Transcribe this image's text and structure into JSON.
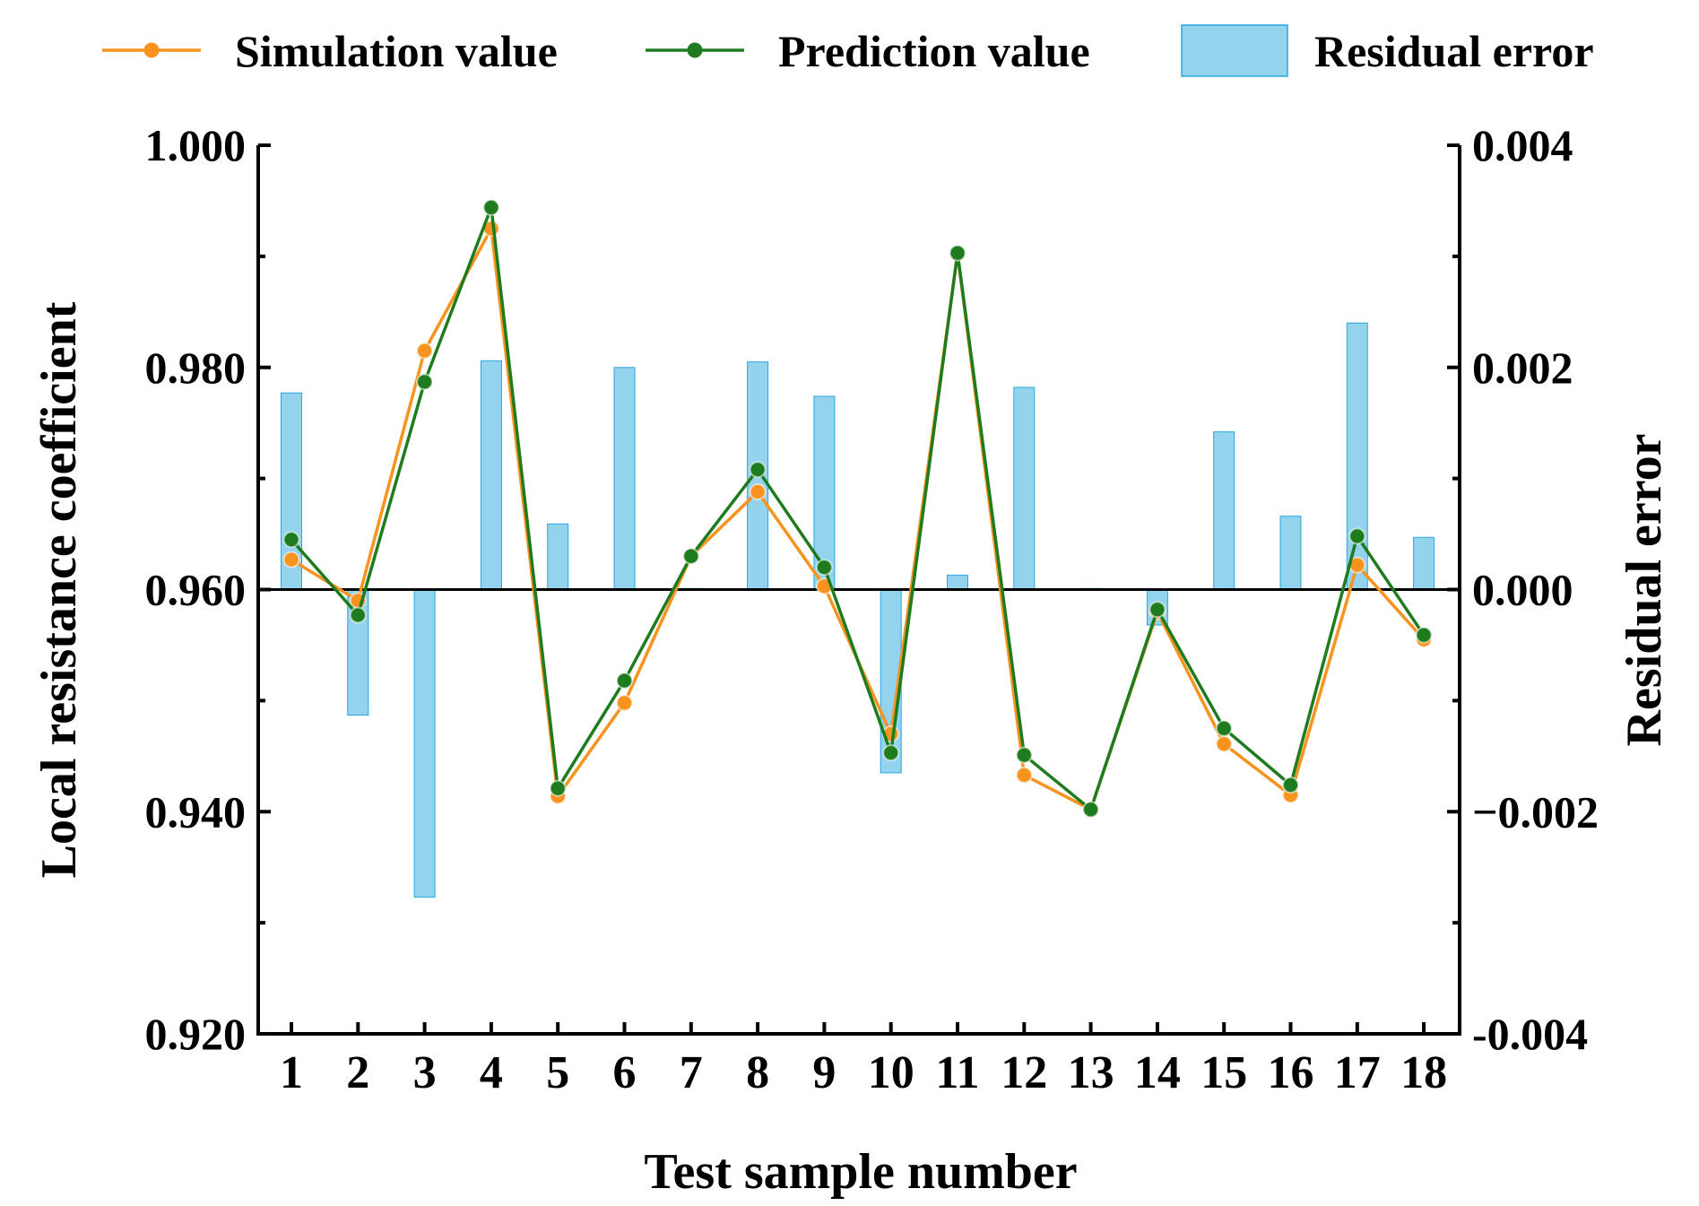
{
  "chart_data": {
    "type": "bar+line",
    "title": "",
    "xlabel": "Test sample number",
    "ylabel_left": "Local resistance coefficient",
    "ylabel_right": "Residual error",
    "categories": [
      "1",
      "2",
      "3",
      "4",
      "5",
      "6",
      "7",
      "8",
      "9",
      "10",
      "11",
      "12",
      "13",
      "14",
      "15",
      "16",
      "17",
      "18"
    ],
    "ylim_left": [
      0.92,
      1.0
    ],
    "ylim_right": [
      -0.004,
      0.004
    ],
    "left_ticks": [
      "0.920",
      "0.940",
      "0.960",
      "0.980",
      "1.000"
    ],
    "right_ticks": [
      "-0.004",
      "−0.002",
      "0.000",
      "0.002",
      "0.004"
    ],
    "legend_position": "top",
    "series": [
      {
        "name": "Simulation value",
        "kind": "line",
        "axis": "left",
        "color": "#F7931E",
        "values": [
          0.9627,
          0.959,
          0.9815,
          0.9925,
          0.9414,
          0.9498,
          0.963,
          0.9688,
          0.9603,
          0.947,
          0.9902,
          0.9433,
          0.9402,
          0.958,
          0.9461,
          0.9415,
          0.9622,
          0.9555
        ]
      },
      {
        "name": "Prediction value",
        "kind": "line",
        "axis": "left",
        "color": "#1E7B1E",
        "values": [
          0.9645,
          0.9577,
          0.9787,
          0.9944,
          0.9421,
          0.9518,
          0.963,
          0.9708,
          0.962,
          0.9453,
          0.9903,
          0.9451,
          0.9402,
          0.9582,
          0.9475,
          0.9424,
          0.9648,
          0.9559
        ]
      },
      {
        "name": "Residual error",
        "kind": "bar",
        "axis": "right",
        "color": "#87CEEB",
        "values": [
          0.00177,
          -0.00113,
          -0.00277,
          0.00206,
          0.00059,
          0.002,
          1e-05,
          0.00205,
          0.00174,
          -0.00165,
          0.00013,
          0.00182,
          1e-05,
          -0.00032,
          0.00142,
          0.00066,
          0.0024,
          0.00047
        ]
      }
    ]
  }
}
